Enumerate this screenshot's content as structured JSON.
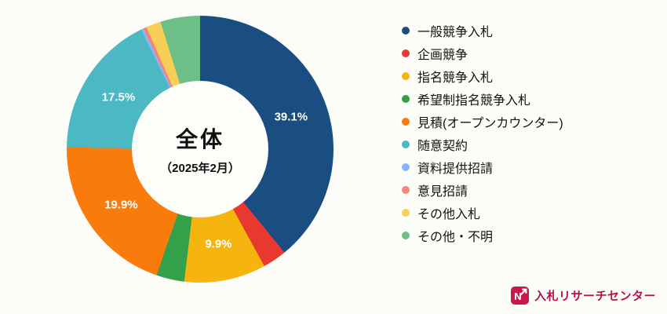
{
  "chart_data": {
    "type": "pie",
    "title": "全体（2025年2月）",
    "legend_position": "right",
    "center": {
      "title": "全体",
      "subtitle": "（2025年2月）"
    },
    "segments": [
      {
        "label": "一般競争入札",
        "value": 39.1,
        "color": "#1a4e80",
        "display_label": "39.1%"
      },
      {
        "label": "企画競争",
        "value": 2.9,
        "color": "#e8382f",
        "display_label": null
      },
      {
        "label": "指名競争入札",
        "value": 9.9,
        "color": "#f6b40e",
        "display_label": "9.9%"
      },
      {
        "label": "希望制指名競争入札",
        "value": 3.4,
        "color": "#33a04a",
        "display_label": null
      },
      {
        "label": "見積(オープンカウンター)",
        "value": 19.9,
        "color": "#f97b0c",
        "display_label": "19.9%"
      },
      {
        "label": "随意契約",
        "value": 17.5,
        "color": "#4cb8c4",
        "display_label": "17.5%"
      },
      {
        "label": "資料提供招請",
        "value": 0.3,
        "color": "#8ab4f8",
        "display_label": null
      },
      {
        "label": "意見招請",
        "value": 0.4,
        "color": "#f4847c",
        "display_label": null
      },
      {
        "label": "その他入札",
        "value": 1.8,
        "color": "#f8cf56",
        "display_label": null
      },
      {
        "label": "その他・不明",
        "value": 4.8,
        "color": "#6dbe87",
        "display_label": null
      }
    ]
  },
  "logo": {
    "text": "入札リサーチセンター"
  }
}
